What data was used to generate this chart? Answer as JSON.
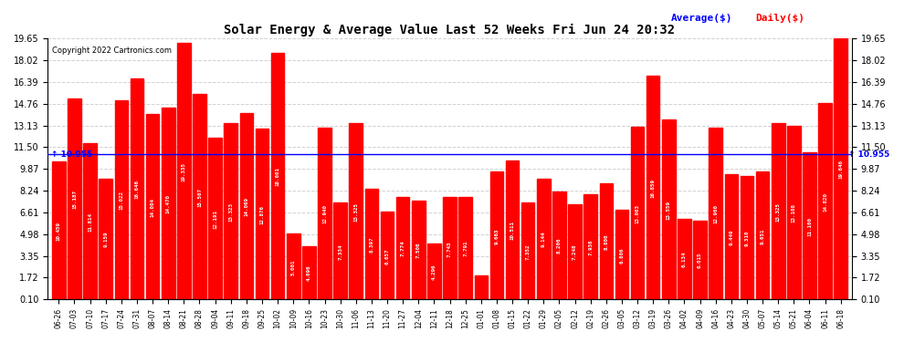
{
  "title": "Solar Energy & Average Value Last 52 Weeks Fri Jun 24 20:32",
  "copyright": "Copyright 2022 Cartronics.com",
  "average_label": "Average($)",
  "daily_label": "Daily($)",
  "average_value": 10.955,
  "bar_color": "#FF0000",
  "average_line_color": "#0000FF",
  "average_text_color": "#0000FF",
  "daily_text_color": "#FF0000",
  "background_color": "#FFFFFF",
  "grid_color": "#CCCCCC",
  "ylim": [
    0.1,
    19.65
  ],
  "yticks": [
    0.1,
    1.72,
    3.35,
    4.98,
    6.61,
    8.24,
    9.87,
    11.5,
    13.13,
    14.76,
    16.39,
    18.02,
    19.65
  ],
  "categories": [
    "06-26",
    "07-03",
    "07-10",
    "07-17",
    "07-24",
    "07-31",
    "08-07",
    "08-14",
    "08-21",
    "08-28",
    "09-04",
    "09-11",
    "09-18",
    "09-25",
    "10-02",
    "10-09",
    "10-16",
    "10-23",
    "10-30",
    "11-06",
    "11-13",
    "11-20",
    "11-27",
    "12-04",
    "12-11",
    "12-18",
    "12-25",
    "01-01",
    "01-08",
    "01-15",
    "01-22",
    "01-29",
    "02-05",
    "02-12",
    "02-19",
    "02-26",
    "03-05",
    "03-12",
    "03-19",
    "03-26",
    "04-02",
    "04-09",
    "04-16",
    "04-23",
    "04-30",
    "05-07",
    "05-14",
    "05-21",
    "06-04",
    "06-11",
    "06-18"
  ],
  "values": [
    10.459,
    15.187,
    11.814,
    9.159,
    15.022,
    16.646,
    14.004,
    14.47,
    19.335,
    15.507,
    12.191,
    13.323,
    14.069,
    12.876,
    18.601,
    5.001,
    4.096,
    12.94,
    7.334,
    13.325,
    8.397,
    6.657,
    7.774,
    7.506,
    4.296,
    7.743,
    7.791,
    1.873,
    9.663,
    10.511,
    7.352,
    9.144,
    8.206,
    7.248,
    7.938,
    8.8,
    6.806,
    13.063,
    16.859,
    13.559,
    6.134,
    6.015,
    12.96,
    9.449,
    9.31,
    9.651,
    13.325,
    13.108,
    11.1,
    14.82,
    19.646
  ],
  "figsize": [
    9.9,
    3.75
  ],
  "dpi": 100
}
